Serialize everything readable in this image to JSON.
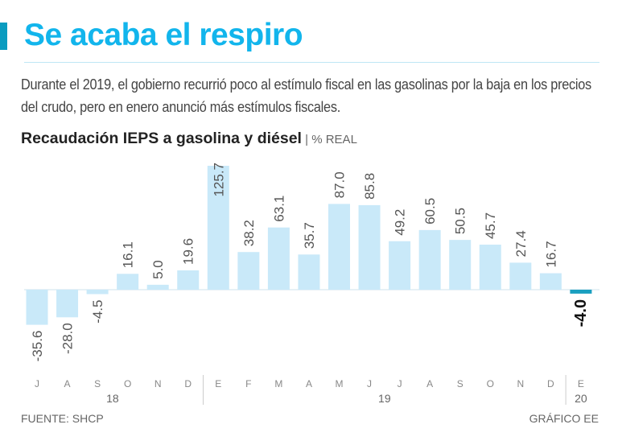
{
  "header": {
    "title": "Se acaba el respiro",
    "description": "Durante el 2019, el gobierno recurrió poco al estímulo fiscal en las gasolinas por la baja en los precios del crudo, pero en enero anunció más estímulos fiscales.",
    "subtitle": "Recaudación IEPS a gasolina y diésel",
    "unit": " | % REAL"
  },
  "chart_data": {
    "type": "bar",
    "title": "Recaudación IEPS a gasolina y diésel",
    "ylabel": "% REAL",
    "categories": [
      "J",
      "A",
      "S",
      "O",
      "N",
      "D",
      "E",
      "F",
      "M",
      "A",
      "M",
      "J",
      "J",
      "A",
      "S",
      "O",
      "N",
      "D",
      "E"
    ],
    "years": [
      {
        "label": "18",
        "from": 0,
        "to": 5
      },
      {
        "label": "19",
        "from": 6,
        "to": 17
      },
      {
        "label": "20",
        "from": 18,
        "to": 18
      }
    ],
    "values": [
      -35.6,
      -28.0,
      -4.5,
      16.1,
      5.0,
      19.6,
      125.7,
      38.2,
      63.1,
      35.7,
      87.0,
      85.8,
      49.2,
      60.5,
      50.5,
      45.7,
      27.4,
      16.7,
      -4.0
    ],
    "labels": [
      "-35.6",
      "-28.0",
      "-4.5",
      "16.1",
      "5.0",
      "19.6",
      "125.7",
      "38.2",
      "63.1",
      "35.7",
      "87.0",
      "85.8",
      "49.2",
      "60.5",
      "50.5",
      "45.7",
      "27.4",
      "16.7",
      "-4.0"
    ],
    "highlight_index": 18,
    "colors": {
      "bar": "#c9e9f9",
      "highlight": "#1a9fc0"
    }
  },
  "footer": {
    "source": "FUENTE: SHCP",
    "credit": "GRÁFICO EE"
  }
}
